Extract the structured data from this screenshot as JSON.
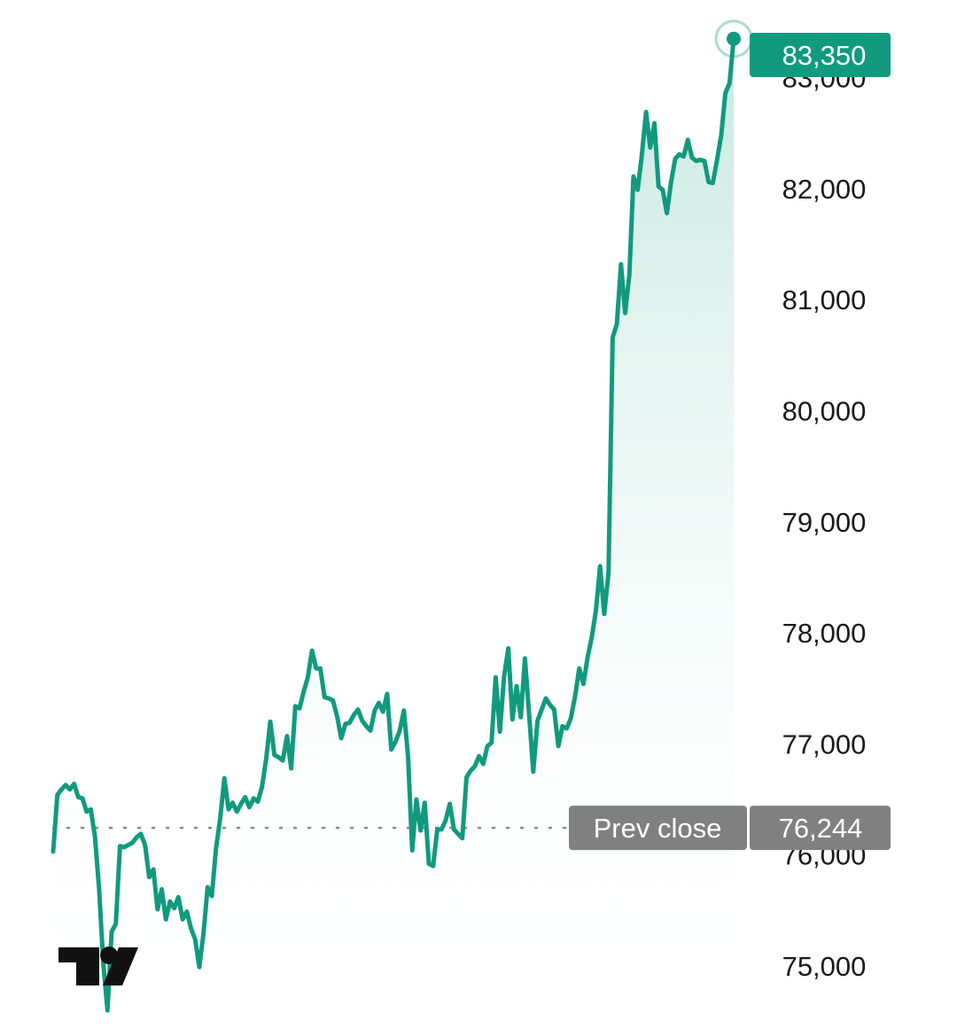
{
  "chart_data": {
    "type": "area",
    "title": "",
    "xlabel": "",
    "ylabel": "",
    "ylim": [
      74600,
      83600
    ],
    "yticks": [
      75000,
      76000,
      77000,
      78000,
      79000,
      80000,
      81000,
      82000,
      83000
    ],
    "ytick_labels": [
      "75,000",
      "76,000",
      "77,000",
      "78,000",
      "79,000",
      "80,000",
      "81,000",
      "82,000",
      "83,000"
    ],
    "grid": false,
    "line_color": "#119a7e",
    "fill_color_top": "#bfe6db",
    "series": [
      {
        "values": [
          76030,
          76540,
          76590,
          76630,
          76590,
          76640,
          76520,
          76510,
          76390,
          76410,
          76170,
          75700,
          75030,
          74600,
          75310,
          75380,
          76080,
          76070,
          76090,
          76110,
          76160,
          76190,
          76090,
          75800,
          75870,
          75510,
          75690,
          75420,
          75580,
          75520,
          75620,
          75420,
          75490,
          75340,
          75240,
          74990,
          75290,
          75710,
          75630,
          76060,
          76330,
          76690,
          76410,
          76470,
          76390,
          76460,
          76520,
          76430,
          76510,
          76480,
          76610,
          76860,
          77200,
          76900,
          76880,
          76850,
          77070,
          76780,
          77340,
          77320,
          77470,
          77600,
          77840,
          77680,
          77680,
          77420,
          77410,
          77390,
          77250,
          77050,
          77180,
          77190,
          77260,
          77310,
          77210,
          77160,
          77120,
          77300,
          77370,
          77290,
          77450,
          76950,
          77020,
          77120,
          77300,
          76890,
          76040,
          76500,
          76220,
          76470,
          75920,
          75900,
          76230,
          76230,
          76310,
          76460,
          76230,
          76190,
          76150,
          76700,
          76760,
          76800,
          76890,
          76820,
          76980,
          77010,
          77600,
          77110,
          77610,
          77860,
          77220,
          77520,
          77240,
          77770,
          77270,
          76750,
          77210,
          77310,
          77410,
          77350,
          77310,
          76980,
          77160,
          77140,
          77230,
          77430,
          77680,
          77540,
          77780,
          77960,
          78200,
          78600,
          78170,
          78540,
          80660,
          80780,
          81320,
          80880,
          81220,
          82110,
          81990,
          82300,
          82690,
          82370,
          82590,
          82020,
          81990,
          81780,
          82060,
          82270,
          82310,
          82290,
          82440,
          82280,
          82250,
          82260,
          82250,
          82060,
          82050,
          82260,
          82480,
          82860,
          82950,
          83350
        ]
      }
    ],
    "prev_close": {
      "value": 76244,
      "label": "Prev close",
      "value_label": "76,244",
      "tag_color": "#808080"
    },
    "last_value": {
      "value": 83350,
      "value_label": "83,350",
      "tag_color": "#119a7e"
    },
    "logo": "tradingview-logo-icon"
  }
}
